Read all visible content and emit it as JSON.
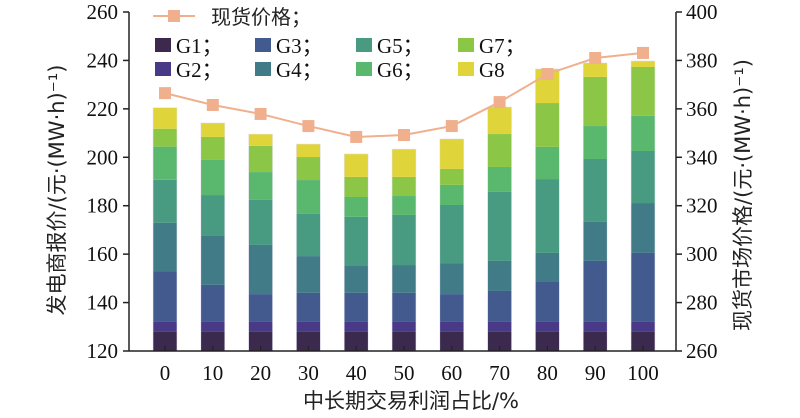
{
  "chart_data": {
    "type": "bar",
    "stacked": true,
    "title": "",
    "xlabel": "中长期交易利润占比/%",
    "ylabel": "发电商报价/(元·(MW·h)⁻¹)",
    "y2label": "现货市场价格/(元·(MW·h)⁻¹)",
    "ylim": [
      120,
      260
    ],
    "y2lim": [
      260,
      400
    ],
    "yticks": [
      120,
      140,
      160,
      180,
      200,
      220,
      240,
      260
    ],
    "y2ticks": [
      260,
      280,
      300,
      320,
      340,
      360,
      380,
      400
    ],
    "grid": false,
    "legend_position": "top-left",
    "categories": [
      "0",
      "10",
      "20",
      "30",
      "40",
      "50",
      "60",
      "70",
      "80",
      "90",
      "100"
    ],
    "base": 120,
    "series": [
      {
        "name": "G1",
        "legend_label": "G1；",
        "color": "#3b2a4e",
        "values": [
          8,
          8,
          8,
          8,
          8,
          8,
          8,
          8,
          8,
          8,
          8
        ]
      },
      {
        "name": "G2",
        "legend_label": "G2；",
        "color": "#483a86",
        "values": [
          4,
          4,
          4,
          4,
          4,
          4,
          4,
          4,
          4,
          4,
          4
        ]
      },
      {
        "name": "G3",
        "legend_label": "G3；",
        "color": "#435a8e",
        "values": [
          21,
          15.3,
          11.5,
          12,
          12,
          12,
          11.5,
          12.8,
          16.5,
          25.2,
          28.5
        ]
      },
      {
        "name": "G4",
        "legend_label": "G4；",
        "color": "#427b88",
        "values": [
          20,
          20.2,
          20.3,
          15.2,
          11.1,
          11.5,
          12.8,
          12.4,
          12,
          16.1,
          20.6
        ]
      },
      {
        "name": "G5",
        "legend_label": "G5；",
        "color": "#489a80",
        "values": [
          17.7,
          16.9,
          18.6,
          17.4,
          20.3,
          20.7,
          24,
          28.5,
          30.5,
          26,
          21.5
        ]
      },
      {
        "name": "G6",
        "legend_label": "G6；",
        "color": "#59b76e",
        "values": [
          13.7,
          14.5,
          11.5,
          14,
          8.2,
          7.8,
          8.3,
          10.3,
          13.3,
          13.6,
          14.5
        ]
      },
      {
        "name": "G7",
        "legend_label": "G7；",
        "color": "#8cc646",
        "values": [
          7.4,
          9.5,
          10.8,
          9.5,
          8.3,
          7.9,
          6.6,
          13.6,
          18.1,
          20.3,
          20.2
        ]
      },
      {
        "name": "G8",
        "legend_label": "G8",
        "color": "#dfd43a",
        "values": [
          8.7,
          5.8,
          4.9,
          5.4,
          9.5,
          11.5,
          12.4,
          11.2,
          14.1,
          5.8,
          2.5
        ]
      }
    ],
    "line_series": {
      "name": "现货价格",
      "legend_label": "现货价格；",
      "axis": "right",
      "color": "#f0b08e",
      "values": [
        366.5,
        361.6,
        357.9,
        352.9,
        348.4,
        349.2,
        352.9,
        362.8,
        374.4,
        381.0,
        383.1
      ]
    }
  }
}
